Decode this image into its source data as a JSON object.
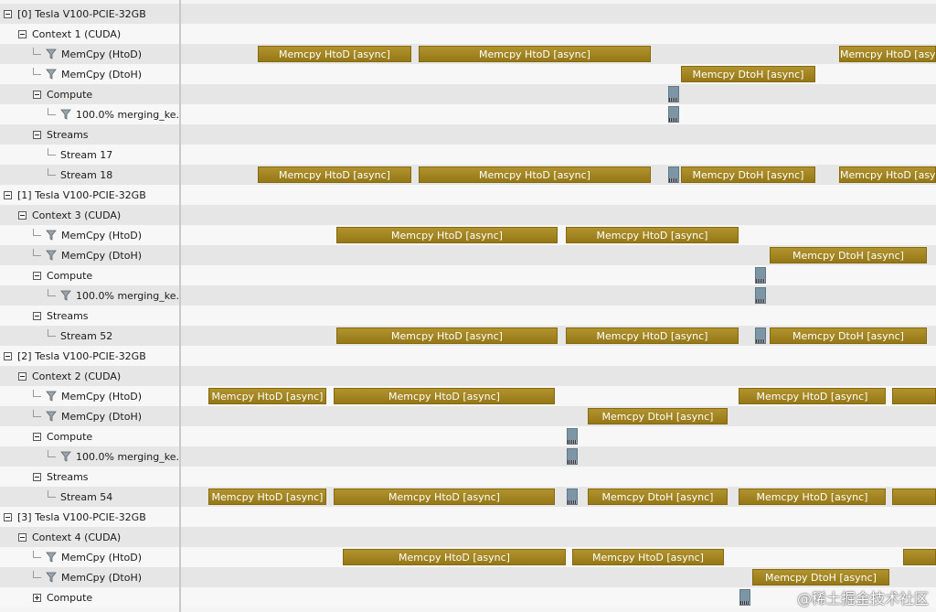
{
  "rows": [
    {
      "label": "[0] Tesla V100-PCIE-32GB",
      "indent": 0,
      "type": "toggle",
      "bars": []
    },
    {
      "label": "Context 1 (CUDA)",
      "indent": 1,
      "type": "toggle",
      "bars": []
    },
    {
      "label": "MemCpy (HtoD)",
      "indent": 2,
      "type": "filter",
      "bars": [
        {
          "start": 282,
          "end": 450,
          "label": "Memcpy HtoD [async]"
        },
        {
          "start": 458,
          "end": 712,
          "label": "Memcpy HtoD [async]"
        },
        {
          "start": 918,
          "end": 1024,
          "label": "Memcpy HtoD [async]"
        }
      ]
    },
    {
      "label": "MemCpy (DtoH)",
      "indent": 2,
      "type": "filter",
      "bars": [
        {
          "start": 745,
          "end": 892,
          "label": "Memcpy DtoH [async]"
        }
      ]
    },
    {
      "label": "Compute",
      "indent": 2,
      "type": "toggle",
      "bars": [
        {
          "start": 731,
          "end": 743,
          "label": "",
          "kind": "kernel"
        }
      ]
    },
    {
      "label": "100.0% merging_ke...",
      "indent": 3,
      "type": "filter",
      "bars": [
        {
          "start": 731,
          "end": 743,
          "label": "",
          "kind": "kernel"
        }
      ]
    },
    {
      "label": "Streams",
      "indent": 2,
      "type": "toggle",
      "bars": []
    },
    {
      "label": "Stream 17",
      "indent": 3,
      "type": "leaf",
      "bars": []
    },
    {
      "label": "Stream 18",
      "indent": 3,
      "type": "leaf",
      "bars": [
        {
          "start": 282,
          "end": 450,
          "label": "Memcpy HtoD [async]"
        },
        {
          "start": 458,
          "end": 712,
          "label": "Memcpy HtoD [async]"
        },
        {
          "start": 731,
          "end": 743,
          "label": "",
          "kind": "kernel"
        },
        {
          "start": 745,
          "end": 892,
          "label": "Memcpy DtoH [async]"
        },
        {
          "start": 918,
          "end": 1024,
          "label": "Memcpy HtoD [async]"
        }
      ]
    },
    {
      "label": "[1] Tesla V100-PCIE-32GB",
      "indent": 0,
      "type": "toggle",
      "bars": []
    },
    {
      "label": "Context 3 (CUDA)",
      "indent": 1,
      "type": "toggle",
      "bars": []
    },
    {
      "label": "MemCpy (HtoD)",
      "indent": 2,
      "type": "filter",
      "bars": [
        {
          "start": 368,
          "end": 610,
          "label": "Memcpy HtoD [async]"
        },
        {
          "start": 619,
          "end": 808,
          "label": "Memcpy HtoD [async]"
        }
      ]
    },
    {
      "label": "MemCpy (DtoH)",
      "indent": 2,
      "type": "filter",
      "bars": [
        {
          "start": 842,
          "end": 1014,
          "label": "Memcpy DtoH [async]"
        }
      ]
    },
    {
      "label": "Compute",
      "indent": 2,
      "type": "toggle",
      "bars": [
        {
          "start": 826,
          "end": 838,
          "label": "",
          "kind": "kernel"
        }
      ]
    },
    {
      "label": "100.0% merging_ke...",
      "indent": 3,
      "type": "filter",
      "bars": [
        {
          "start": 826,
          "end": 838,
          "label": "",
          "kind": "kernel"
        }
      ]
    },
    {
      "label": "Streams",
      "indent": 2,
      "type": "toggle",
      "bars": []
    },
    {
      "label": "Stream 52",
      "indent": 3,
      "type": "leaf",
      "bars": [
        {
          "start": 368,
          "end": 610,
          "label": "Memcpy HtoD [async]"
        },
        {
          "start": 619,
          "end": 808,
          "label": "Memcpy HtoD [async]"
        },
        {
          "start": 826,
          "end": 838,
          "label": "",
          "kind": "kernel"
        },
        {
          "start": 842,
          "end": 1014,
          "label": "Memcpy DtoH [async]"
        }
      ]
    },
    {
      "label": "[2] Tesla V100-PCIE-32GB",
      "indent": 0,
      "type": "toggle",
      "bars": []
    },
    {
      "label": "Context 2 (CUDA)",
      "indent": 1,
      "type": "toggle",
      "bars": []
    },
    {
      "label": "MemCpy (HtoD)",
      "indent": 2,
      "type": "filter",
      "bars": [
        {
          "start": 228,
          "end": 357,
          "label": "Memcpy HtoD [async]"
        },
        {
          "start": 365,
          "end": 607,
          "label": "Memcpy HtoD [async]"
        },
        {
          "start": 808,
          "end": 969,
          "label": "Memcpy HtoD [async]"
        },
        {
          "start": 976,
          "end": 1024,
          "label": ""
        }
      ]
    },
    {
      "label": "MemCpy (DtoH)",
      "indent": 2,
      "type": "filter",
      "bars": [
        {
          "start": 643,
          "end": 796,
          "label": "Memcpy DtoH [async]"
        }
      ]
    },
    {
      "label": "Compute",
      "indent": 2,
      "type": "toggle",
      "bars": [
        {
          "start": 620,
          "end": 632,
          "label": "",
          "kind": "kernel"
        }
      ]
    },
    {
      "label": "100.0% merging_ke...",
      "indent": 3,
      "type": "filter",
      "bars": [
        {
          "start": 620,
          "end": 632,
          "label": "",
          "kind": "kernel"
        }
      ]
    },
    {
      "label": "Streams",
      "indent": 2,
      "type": "toggle",
      "bars": []
    },
    {
      "label": "Stream 54",
      "indent": 3,
      "type": "leaf",
      "bars": [
        {
          "start": 228,
          "end": 357,
          "label": "Memcpy HtoD [async]"
        },
        {
          "start": 365,
          "end": 607,
          "label": "Memcpy HtoD [async]"
        },
        {
          "start": 620,
          "end": 632,
          "label": "",
          "kind": "kernel"
        },
        {
          "start": 643,
          "end": 796,
          "label": "Memcpy DtoH [async]"
        },
        {
          "start": 808,
          "end": 969,
          "label": "Memcpy HtoD [async]"
        },
        {
          "start": 976,
          "end": 1024,
          "label": ""
        }
      ]
    },
    {
      "label": "[3] Tesla V100-PCIE-32GB",
      "indent": 0,
      "type": "toggle",
      "bars": []
    },
    {
      "label": "Context 4 (CUDA)",
      "indent": 1,
      "type": "toggle",
      "bars": []
    },
    {
      "label": "MemCpy (HtoD)",
      "indent": 2,
      "type": "filter",
      "bars": [
        {
          "start": 375,
          "end": 619,
          "label": "Memcpy HtoD [async]"
        },
        {
          "start": 626,
          "end": 792,
          "label": "Memcpy HtoD [async]"
        },
        {
          "start": 988,
          "end": 1024,
          "label": ""
        }
      ]
    },
    {
      "label": "MemCpy (DtoH)",
      "indent": 2,
      "type": "filter",
      "bars": [
        {
          "start": 823,
          "end": 973,
          "label": "Memcpy DtoH [async]"
        }
      ]
    },
    {
      "label": "Compute",
      "indent": 2,
      "type": "toggle-plus",
      "bars": [
        {
          "start": 809,
          "end": 821,
          "label": "",
          "kind": "kernel"
        }
      ]
    }
  ],
  "watermark": "@稀土掘金技术社区"
}
